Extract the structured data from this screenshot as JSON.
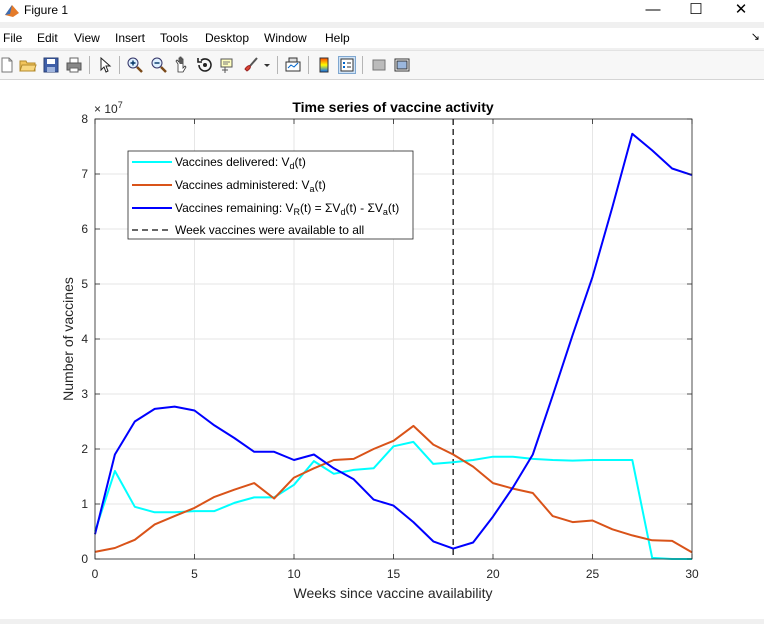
{
  "window": {
    "title": "Figure 1",
    "minimize": "—",
    "maximize": "☐",
    "close": "✕"
  },
  "menu": {
    "items": [
      "File",
      "Edit",
      "View",
      "Insert",
      "Tools",
      "Desktop",
      "Window",
      "Help"
    ],
    "dock_glyph": "↘"
  },
  "toolbar": {
    "icons": [
      "new-figure-icon",
      "open-file-icon",
      "save-icon",
      "print-icon",
      "edit-plot-icon",
      "zoom-in-icon",
      "zoom-out-icon",
      "pan-icon",
      "rotate-3d-icon",
      "data-cursor-icon",
      "brush-icon",
      "link-plot-icon",
      "colorbar-icon",
      "legend-icon",
      "hide-plot-tools-icon",
      "show-plot-tools-icon"
    ]
  },
  "colors": {
    "delivered": "#00FFFF",
    "administered": "#D95319",
    "remaining": "#0000FF",
    "vline": "#333333"
  },
  "chart_data": {
    "type": "line",
    "title": "Time series of vaccine activity",
    "xlabel": "Weeks since vaccine availability",
    "ylabel": "Number of vaccines",
    "y_exponent": "× 10",
    "y_exponent_power": "7",
    "xlim": [
      0,
      30
    ],
    "ylim": [
      0,
      8
    ],
    "xticks": [
      0,
      5,
      10,
      15,
      20,
      25,
      30
    ],
    "yticks": [
      0,
      1,
      2,
      3,
      4,
      5,
      6,
      7,
      8
    ],
    "grid": true,
    "legend_position": "top-left",
    "x": [
      0,
      1,
      2,
      3,
      4,
      5,
      6,
      7,
      8,
      9,
      10,
      11,
      12,
      13,
      14,
      15,
      16,
      17,
      18,
      19,
      20,
      21,
      22,
      23,
      24,
      25,
      26,
      27,
      28,
      29,
      30
    ],
    "series": [
      {
        "name": "Vaccines delivered: V_d(t)",
        "legend": {
          "pre": "Vaccines delivered: V",
          "sub": "d",
          "post": "(t)"
        },
        "values": [
          0.5,
          1.6,
          0.95,
          0.85,
          0.85,
          0.87,
          0.87,
          1.02,
          1.12,
          1.12,
          1.35,
          1.78,
          1.55,
          1.62,
          1.65,
          2.05,
          2.13,
          1.73,
          1.76,
          1.8,
          1.86,
          1.86,
          1.82,
          1.8,
          1.79,
          1.8,
          1.8,
          1.8,
          0.02,
          0.0,
          0.0
        ]
      },
      {
        "name": "Vaccines administered: V_a(t)",
        "legend": {
          "pre": "Vaccines administered: V",
          "sub": "a",
          "post": "(t)"
        },
        "values": [
          0.13,
          0.2,
          0.35,
          0.63,
          0.78,
          0.93,
          1.13,
          1.26,
          1.38,
          1.1,
          1.48,
          1.65,
          1.8,
          1.82,
          2.0,
          2.15,
          2.42,
          2.08,
          1.9,
          1.68,
          1.38,
          1.28,
          1.2,
          0.78,
          0.67,
          0.7,
          0.54,
          0.43,
          0.34,
          0.33,
          0.12
        ]
      },
      {
        "name": "Vaccines remaining",
        "legend": {
          "p1": "Vaccines remaining: V",
          "s1": "R",
          "p2": "(t) = ΣV",
          "s2": "d",
          "p3": "(t) - ΣV",
          "s3": "a",
          "p4": "(t)"
        },
        "values": [
          0.45,
          1.9,
          2.5,
          2.73,
          2.77,
          2.7,
          2.43,
          2.2,
          1.95,
          1.95,
          1.8,
          1.9,
          1.65,
          1.45,
          1.08,
          0.97,
          0.67,
          0.32,
          0.19,
          0.3,
          0.77,
          1.3,
          1.9,
          2.97,
          4.07,
          5.13,
          6.4,
          7.73,
          7.43,
          7.1,
          6.98
        ]
      }
    ],
    "vline": {
      "x": 18,
      "label": "Week vaccines were available to all"
    }
  }
}
